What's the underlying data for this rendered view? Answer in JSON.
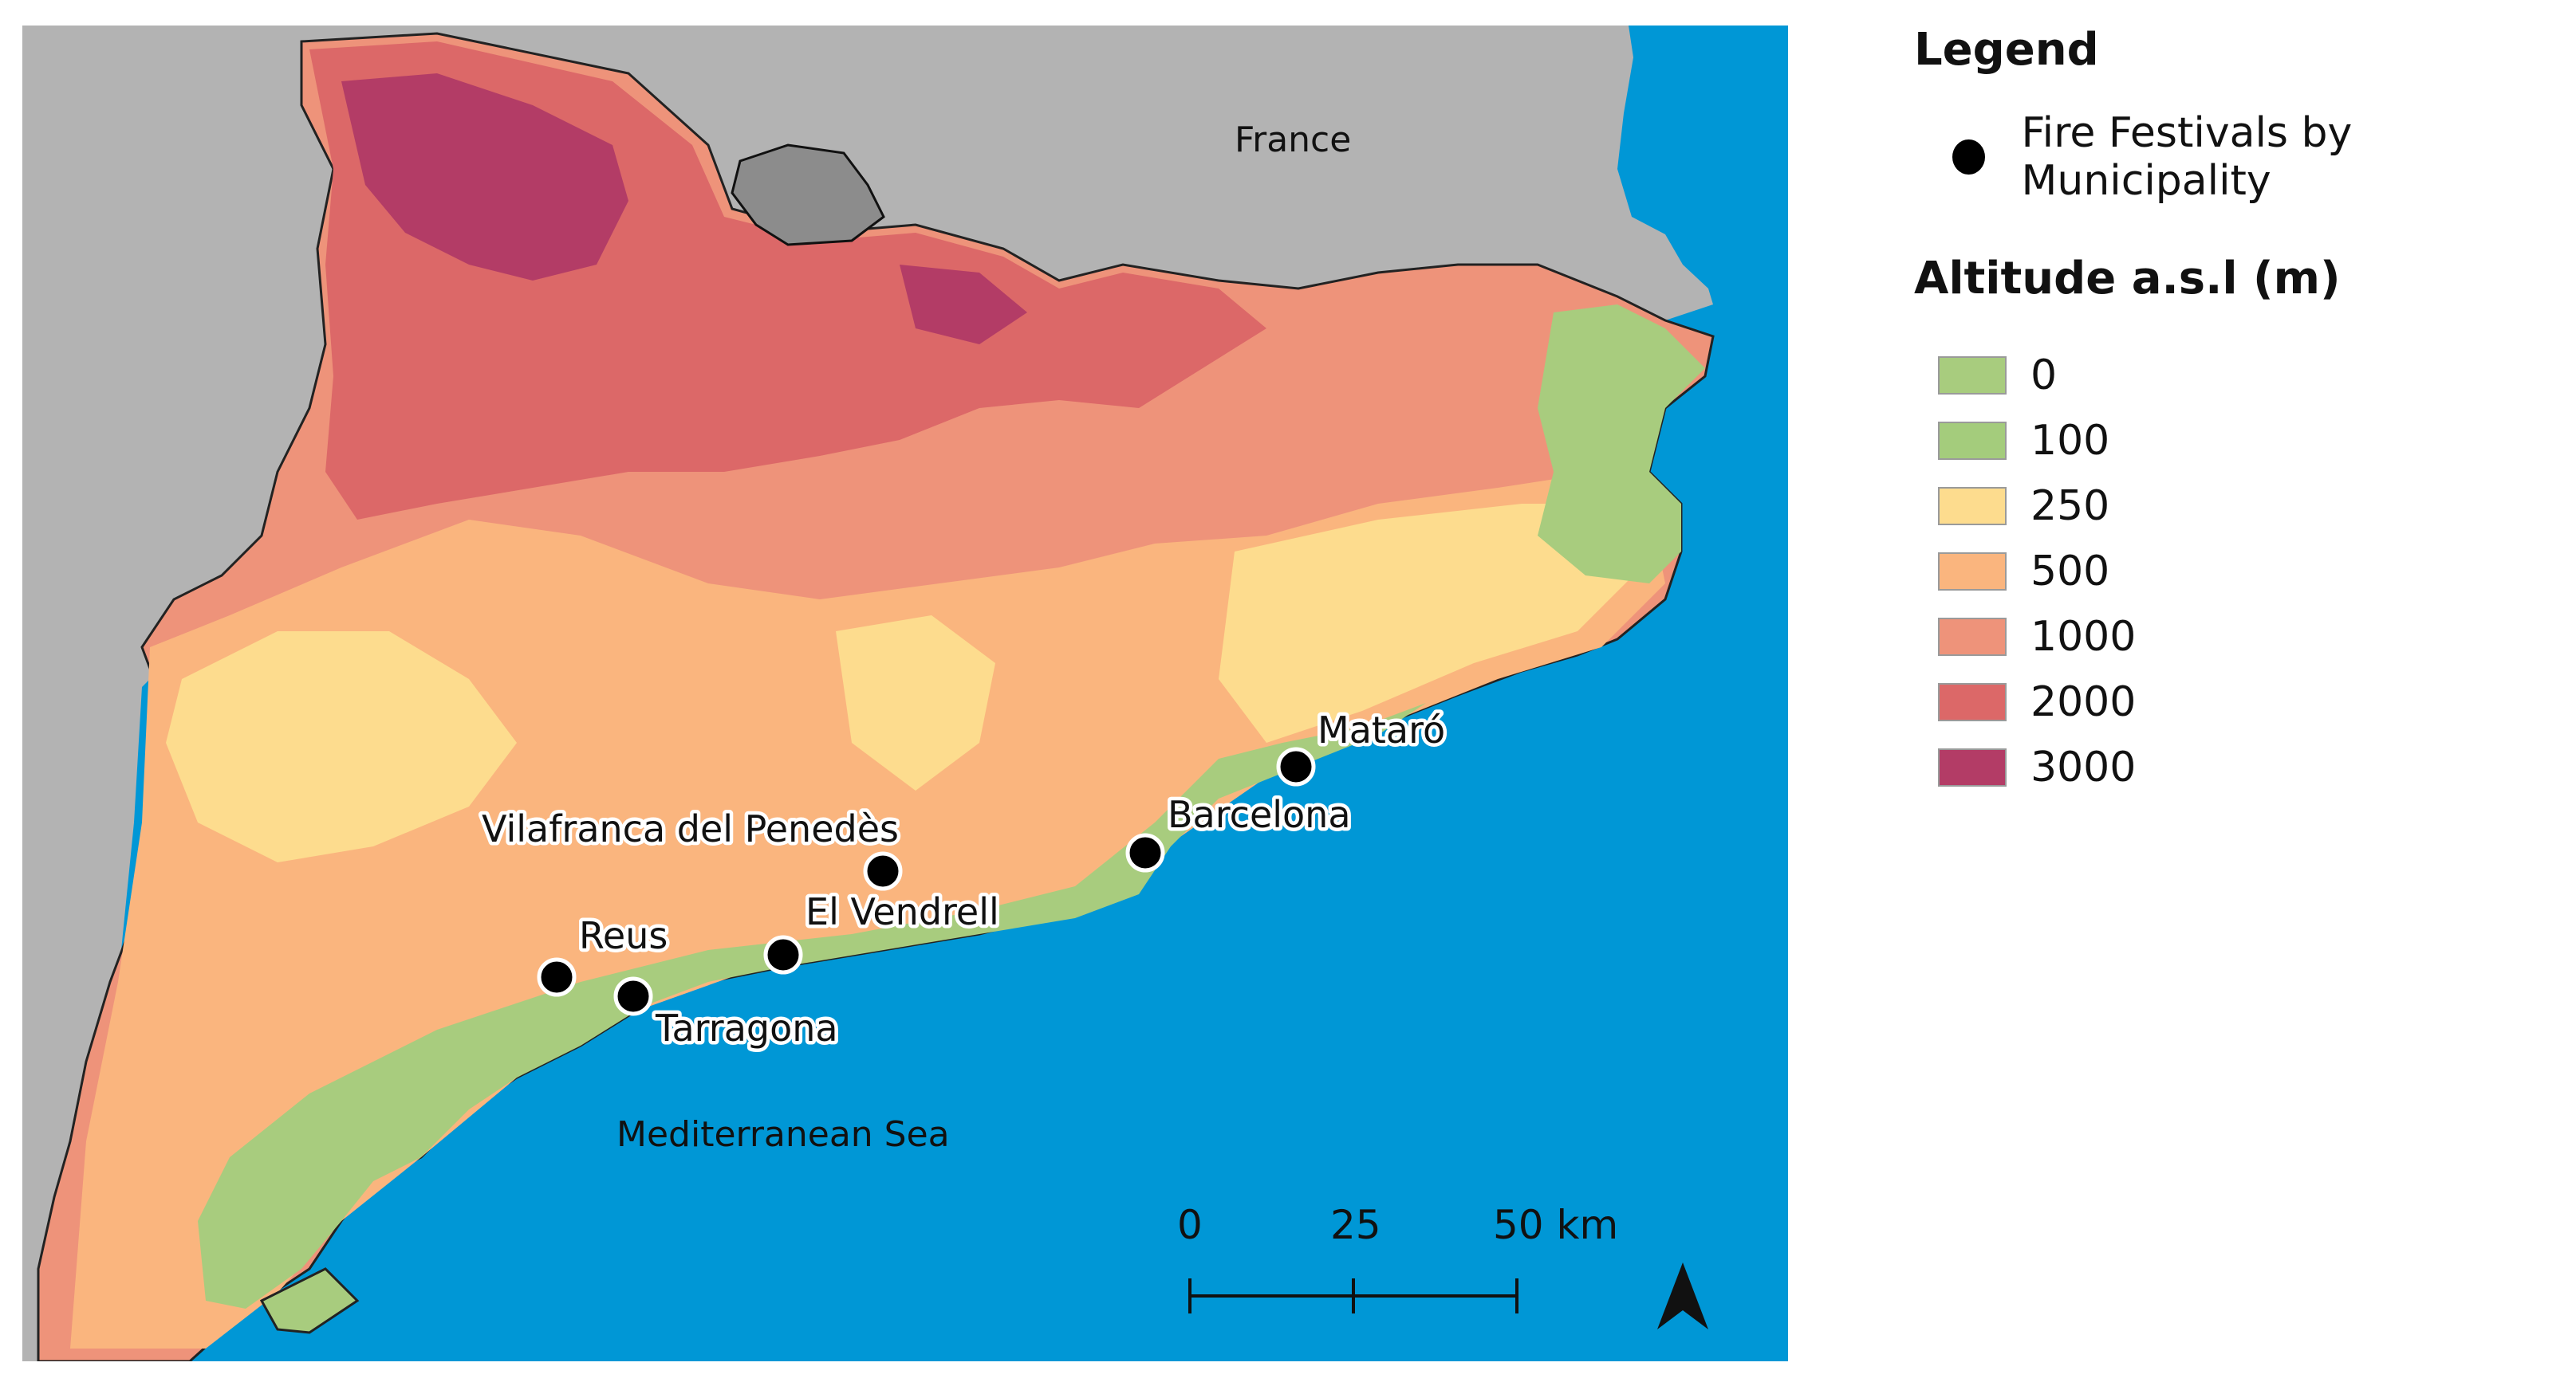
{
  "map": {
    "country_label": "France",
    "sea_label": "Mediterranean Sea",
    "colors": {
      "sea": "#0097D6",
      "neighbour_land": "#B3B3B3",
      "andorra": "#8C8C8C",
      "border": "#111111"
    },
    "cities": [
      {
        "name": "Mataró"
      },
      {
        "name": "Barcelona"
      },
      {
        "name": "Vilafranca del Penedès"
      },
      {
        "name": "El Vendrell"
      },
      {
        "name": "Reus"
      },
      {
        "name": "Tarragona"
      }
    ],
    "scale_bar": {
      "ticks": [
        "0",
        "25",
        "50 km"
      ]
    },
    "north_arrow_icon": "north-arrow-icon"
  },
  "legend": {
    "title": "Legend",
    "point_label": "Fire Festivals by Municipality",
    "altitude_title": "Altitude a.s.l (m)",
    "altitude_classes": [
      {
        "label": "0",
        "color": "#A8CC7E"
      },
      {
        "label": "100",
        "color": "#A4CC7C"
      },
      {
        "label": "250",
        "color": "#FDDC8E"
      },
      {
        "label": "500",
        "color": "#FAB57E"
      },
      {
        "label": "1000",
        "color": "#EE937A"
      },
      {
        "label": "2000",
        "color": "#DC6868"
      },
      {
        "label": "3000",
        "color": "#B33C66"
      }
    ]
  }
}
